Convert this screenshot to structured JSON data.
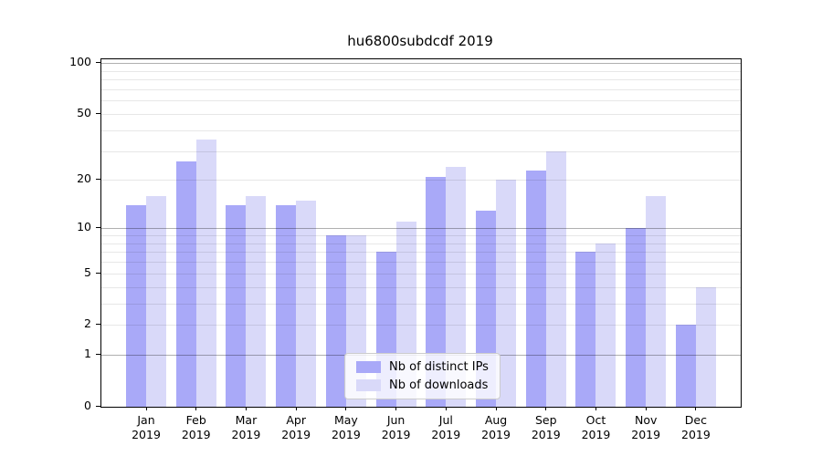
{
  "chart_data": {
    "type": "bar",
    "title": "hu6800subdcdf 2019",
    "categories": [
      "Jan",
      "Feb",
      "Mar",
      "Apr",
      "May",
      "Jun",
      "Jul",
      "Aug",
      "Sep",
      "Oct",
      "Nov",
      "Dec"
    ],
    "x_tick_year": "2019",
    "series": [
      {
        "name": "Nb of distinct IPs",
        "color": "#a9a9f8",
        "values": [
          14,
          26,
          14,
          14,
          9,
          7,
          21,
          13,
          23,
          7,
          10,
          2
        ]
      },
      {
        "name": "Nb of downloads",
        "color": "#d9d9f9",
        "values": [
          16,
          35,
          16,
          15,
          9,
          11,
          24,
          20,
          30,
          8,
          16,
          4
        ]
      }
    ],
    "yscale": "log1p",
    "ylim": [
      0,
      110
    ],
    "y_ticks": [
      0,
      1,
      2,
      5,
      10,
      20,
      50,
      100
    ],
    "y_major_gridlines": [
      1,
      10,
      100
    ],
    "y_minor_gridlines": [
      2,
      3,
      4,
      5,
      6,
      7,
      8,
      9,
      20,
      30,
      40,
      50,
      60,
      70,
      80,
      90
    ],
    "grid": true,
    "legend_position": "lower-center",
    "axis_color": "#000000",
    "gridline_major_color": "#b0b0b0",
    "gridline_minor_color": "#e7e7e7"
  }
}
